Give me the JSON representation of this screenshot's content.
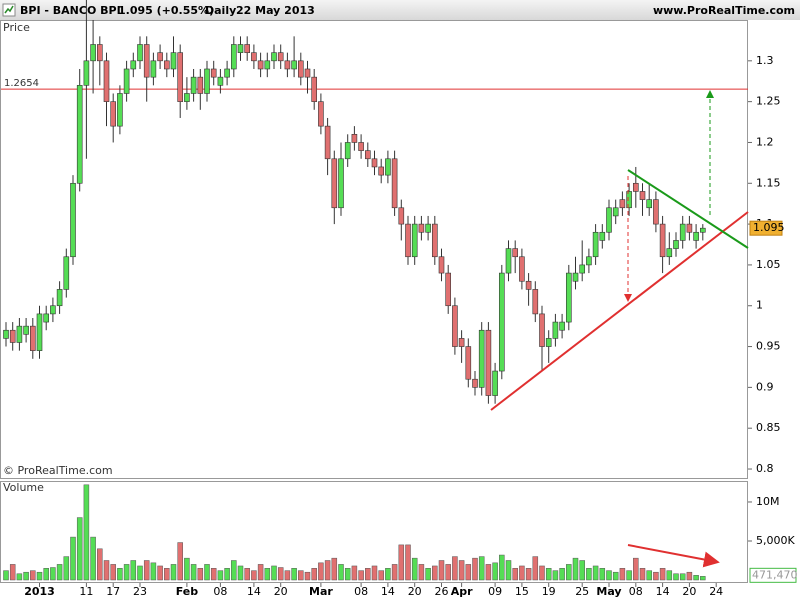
{
  "chart_data": {
    "type": "candlestick",
    "title": "BPI - BANCO BPI",
    "subtitle": "1.095 (+0.55%)",
    "period": "Daily",
    "date": "22 May 2013",
    "source": "www.ProRealTime.com",
    "watermark": "© ProRealTime.com",
    "y_label": "Price",
    "up_color": "#55dd55",
    "down_color": "#e07070",
    "ylim": [
      0.789,
      1.35
    ],
    "yticks": [
      0.8,
      0.85,
      0.9,
      0.95,
      1,
      1.05,
      1.1,
      1.15,
      1.2,
      1.25,
      1.3
    ],
    "reference_line": 1.2654,
    "reference_color": "#e03030",
    "last_label": "1.095",
    "categories": [
      null,
      null,
      null,
      null,
      null,
      "2013",
      null,
      null,
      null,
      null,
      null,
      null,
      "11",
      null,
      null,
      null,
      "17",
      null,
      null,
      null,
      "23",
      null,
      null,
      null,
      null,
      null,
      null,
      "Feb",
      null,
      null,
      null,
      null,
      "08",
      null,
      null,
      null,
      null,
      "14",
      null,
      null,
      null,
      "20",
      null,
      null,
      null,
      null,
      null,
      "Mar",
      null,
      null,
      null,
      null,
      null,
      "08",
      null,
      null,
      null,
      "14",
      null,
      null,
      null,
      "20",
      null,
      null,
      null,
      "26",
      null,
      null,
      "Apr",
      null,
      null,
      null,
      null,
      "09",
      null,
      null,
      null,
      "15",
      null,
      null,
      null,
      "19",
      null,
      null,
      null,
      null,
      "25",
      null,
      null,
      null,
      "May",
      null,
      null,
      null,
      "08",
      null,
      null,
      null,
      "14",
      null,
      null,
      null,
      "20",
      null,
      null,
      null,
      "24"
    ],
    "open": [
      0.96,
      0.97,
      0.955,
      0.965,
      0.975,
      0.945,
      0.98,
      0.99,
      1.0,
      1.02,
      1.06,
      1.15,
      1.27,
      1.3,
      1.32,
      1.3,
      1.25,
      1.22,
      1.26,
      1.29,
      1.3,
      1.32,
      1.28,
      1.31,
      1.3,
      1.29,
      1.31,
      1.25,
      1.26,
      1.28,
      1.26,
      1.29,
      1.27,
      1.28,
      1.29,
      1.31,
      1.32,
      1.31,
      1.3,
      1.29,
      1.3,
      1.31,
      1.3,
      1.29,
      1.3,
      1.29,
      1.28,
      1.25,
      1.22,
      1.18,
      1.12,
      1.18,
      1.21,
      1.2,
      1.19,
      1.18,
      1.17,
      1.16,
      1.18,
      1.12,
      1.1,
      1.06,
      1.1,
      1.09,
      1.1,
      1.06,
      1.04,
      1.0,
      0.96,
      0.95,
      0.91,
      0.9,
      0.97,
      0.89,
      0.92,
      1.04,
      1.07,
      1.06,
      1.03,
      1.02,
      0.99,
      0.95,
      0.96,
      0.97,
      0.98,
      1.03,
      1.04,
      1.05,
      1.06,
      1.08,
      1.09,
      1.11,
      1.13,
      1.12,
      1.15,
      1.14,
      1.12,
      1.13,
      1.1,
      1.06,
      1.07,
      1.08,
      1.1,
      1.08,
      1.09,
      null,
      null
    ],
    "high": [
      0.98,
      0.98,
      0.985,
      0.985,
      0.985,
      1.0,
      1.0,
      1.01,
      1.03,
      1.07,
      1.16,
      1.29,
      1.38,
      1.35,
      1.33,
      1.31,
      1.26,
      1.27,
      1.3,
      1.31,
      1.33,
      1.33,
      1.31,
      1.32,
      1.31,
      1.33,
      1.32,
      1.28,
      1.29,
      1.29,
      1.3,
      1.3,
      1.29,
      1.3,
      1.33,
      1.33,
      1.33,
      1.32,
      1.31,
      1.31,
      1.32,
      1.32,
      1.31,
      1.33,
      1.31,
      1.3,
      1.29,
      1.26,
      1.23,
      1.19,
      1.2,
      1.21,
      1.22,
      1.21,
      1.2,
      1.19,
      1.18,
      1.19,
      1.19,
      1.13,
      1.11,
      1.11,
      1.11,
      1.11,
      1.11,
      1.07,
      1.05,
      1.01,
      0.97,
      0.96,
      0.92,
      0.98,
      0.98,
      0.93,
      1.05,
      1.08,
      1.08,
      1.07,
      1.04,
      1.03,
      1.0,
      0.97,
      0.99,
      0.99,
      1.05,
      1.06,
      1.08,
      1.07,
      1.1,
      1.1,
      1.13,
      1.13,
      1.14,
      1.15,
      1.17,
      1.15,
      1.15,
      1.14,
      1.11,
      1.09,
      1.09,
      1.11,
      1.11,
      1.1,
      1.1,
      null,
      null
    ],
    "low": [
      0.95,
      0.945,
      0.945,
      0.955,
      0.935,
      0.935,
      0.97,
      0.98,
      0.99,
      1.01,
      1.05,
      1.14,
      1.18,
      1.26,
      1.27,
      1.22,
      1.2,
      1.21,
      1.25,
      1.28,
      1.29,
      1.25,
      1.27,
      1.29,
      1.28,
      1.28,
      1.23,
      1.24,
      1.25,
      1.24,
      1.25,
      1.27,
      1.26,
      1.27,
      1.28,
      1.3,
      1.3,
      1.29,
      1.28,
      1.28,
      1.29,
      1.29,
      1.28,
      1.28,
      1.27,
      1.26,
      1.24,
      1.21,
      1.16,
      1.1,
      1.11,
      1.17,
      1.19,
      1.18,
      1.17,
      1.16,
      1.15,
      1.15,
      1.11,
      1.08,
      1.05,
      1.05,
      1.08,
      1.08,
      1.05,
      1.03,
      0.99,
      0.94,
      0.93,
      0.9,
      0.89,
      0.89,
      0.88,
      0.88,
      0.91,
      1.03,
      1.04,
      1.02,
      1.0,
      0.98,
      0.92,
      0.93,
      0.95,
      0.96,
      0.97,
      1.02,
      1.03,
      1.04,
      1.05,
      1.07,
      1.08,
      1.1,
      1.11,
      1.11,
      1.12,
      1.11,
      1.11,
      1.09,
      1.04,
      1.05,
      1.06,
      1.07,
      1.08,
      1.07,
      1.08,
      null,
      null
    ],
    "close": [
      0.97,
      0.955,
      0.975,
      0.975,
      0.945,
      0.99,
      0.99,
      1.0,
      1.02,
      1.06,
      1.15,
      1.27,
      1.3,
      1.32,
      1.3,
      1.25,
      1.22,
      1.26,
      1.29,
      1.3,
      1.32,
      1.28,
      1.3,
      1.3,
      1.29,
      1.31,
      1.25,
      1.26,
      1.28,
      1.26,
      1.29,
      1.28,
      1.28,
      1.29,
      1.32,
      1.32,
      1.31,
      1.3,
      1.29,
      1.3,
      1.31,
      1.3,
      1.29,
      1.3,
      1.28,
      1.28,
      1.25,
      1.22,
      1.18,
      1.12,
      1.18,
      1.2,
      1.2,
      1.19,
      1.18,
      1.17,
      1.16,
      1.18,
      1.12,
      1.1,
      1.06,
      1.1,
      1.09,
      1.1,
      1.06,
      1.04,
      1.0,
      0.95,
      0.95,
      0.91,
      0.9,
      0.97,
      0.89,
      0.92,
      1.04,
      1.07,
      1.06,
      1.03,
      1.02,
      0.99,
      0.95,
      0.96,
      0.98,
      0.98,
      1.04,
      1.04,
      1.05,
      1.06,
      1.09,
      1.09,
      1.12,
      1.12,
      1.12,
      1.14,
      1.14,
      1.13,
      1.13,
      1.1,
      1.06,
      1.07,
      1.08,
      1.1,
      1.09,
      1.09,
      1.095,
      null,
      null
    ],
    "volume": {
      "label": "Volume",
      "ylim": [
        0,
        12560000
      ],
      "yticks": [
        {
          "value": 10000000,
          "label": "10M"
        },
        {
          "value": 5000000,
          "label": "5,000K"
        }
      ],
      "last_label": "471,470",
      "values": [
        1200000,
        2000000,
        800000,
        1000000,
        1200000,
        1000000,
        1500000,
        1600000,
        2000000,
        3000000,
        5500000,
        8000000,
        12200000,
        5500000,
        4000000,
        2500000,
        2000000,
        1500000,
        2000000,
        2500000,
        1800000,
        2500000,
        2200000,
        1800000,
        1500000,
        2000000,
        4800000,
        2800000,
        2000000,
        1500000,
        2000000,
        1500000,
        1200000,
        1500000,
        2500000,
        1800000,
        1500000,
        1200000,
        2000000,
        1500000,
        1800000,
        1600000,
        1200000,
        1500000,
        1200000,
        1000000,
        1500000,
        2200000,
        2500000,
        2800000,
        2000000,
        1500000,
        1800000,
        1200000,
        1500000,
        1800000,
        1200000,
        1500000,
        2000000,
        4500000,
        4500000,
        2800000,
        2000000,
        1500000,
        1800000,
        2500000,
        2000000,
        3000000,
        2500000,
        2000000,
        2800000,
        3000000,
        2000000,
        2200000,
        3200000,
        2500000,
        1500000,
        1800000,
        1500000,
        3000000,
        1800000,
        1500000,
        1200000,
        1500000,
        2000000,
        2800000,
        2500000,
        1500000,
        1800000,
        1500000,
        1200000,
        1000000,
        1500000,
        1200000,
        2800000,
        1500000,
        1200000,
        1000000,
        1500000,
        1200000,
        800000,
        800000,
        1000000,
        600000,
        471470,
        null,
        null
      ]
    }
  }
}
